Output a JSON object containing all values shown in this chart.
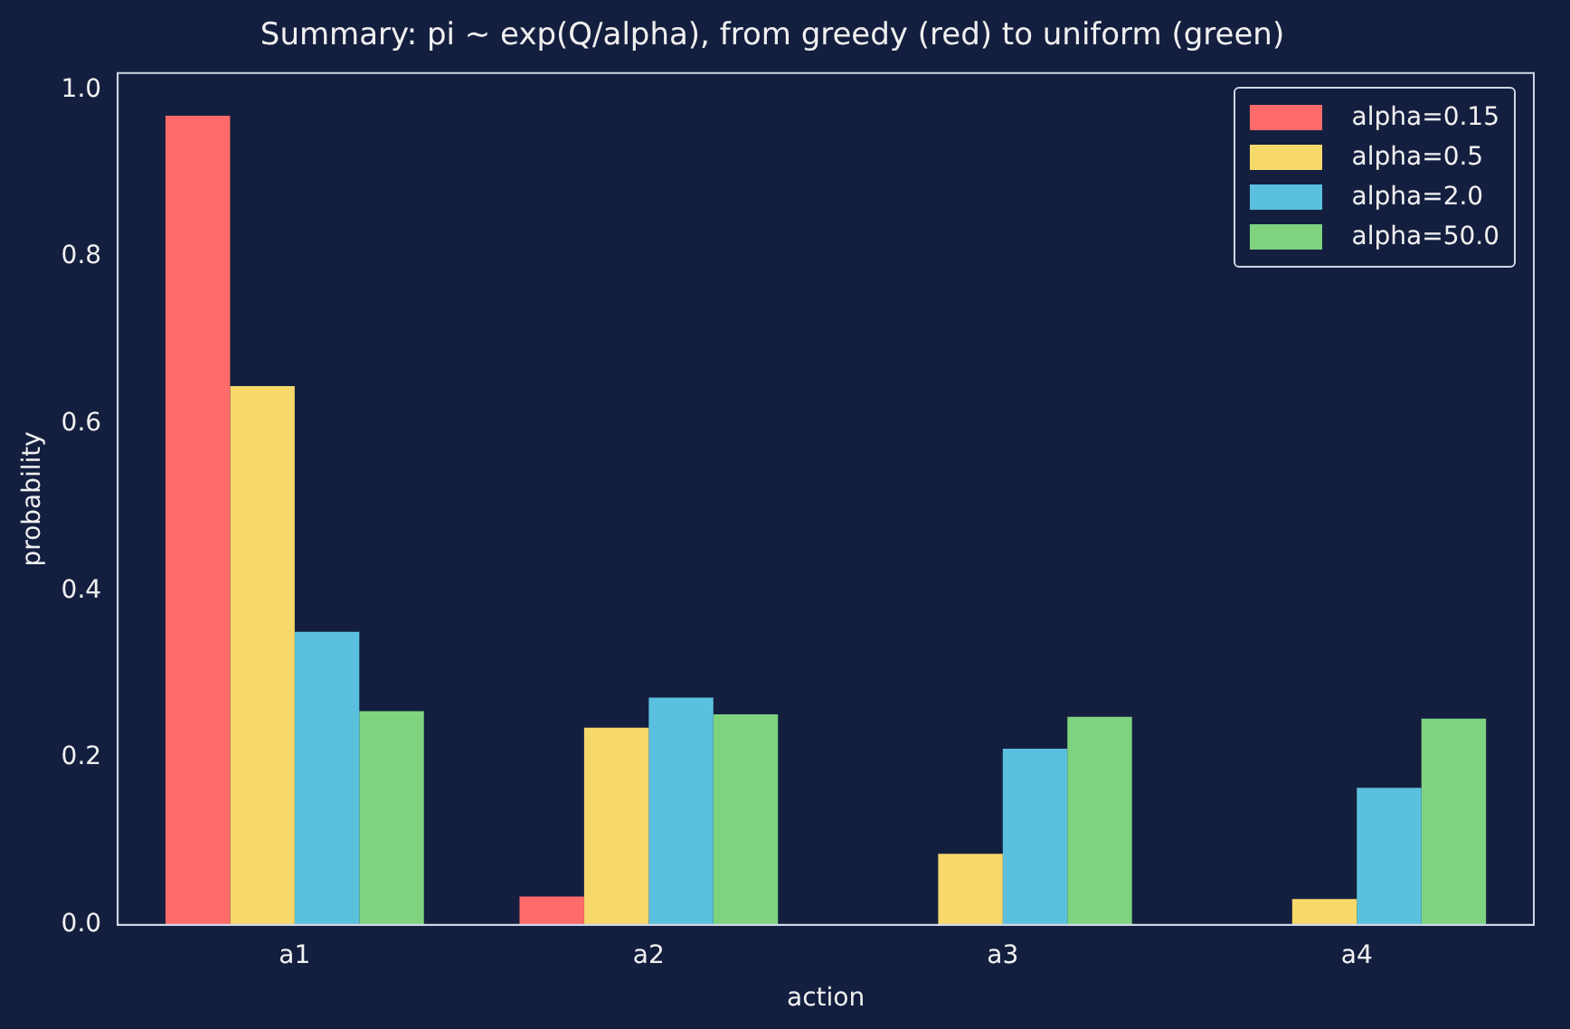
{
  "chart_data": {
    "type": "bar",
    "title": "Summary: pi ~ exp(Q/alpha), from greedy (red) to uniform (green)",
    "xlabel": "action",
    "ylabel": "probability",
    "categories": [
      "a1",
      "a2",
      "a3",
      "a4"
    ],
    "series": [
      {
        "name": "alpha=0.15",
        "color": "#ff6b6b",
        "values": [
          0.969,
          0.034,
          null,
          0
        ]
      },
      {
        "name": "alpha=0.5",
        "color": "#f6d86b",
        "values": [
          0.645,
          0.236,
          0.085,
          0.031
        ]
      },
      {
        "name": "alpha=2.0",
        "color": "#5bc0de",
        "values": [
          0.351,
          0.272,
          0.211,
          0.164
        ]
      },
      {
        "name": "alpha=50.0",
        "color": "#7fd37f",
        "values": [
          0.256,
          0.252,
          0.249,
          0.247
        ]
      }
    ],
    "ylim": [
      0,
      1.02
    ],
    "yticks": [
      {
        "value": 0,
        "label": "0.0"
      },
      {
        "value": 0.2,
        "label": "0.2"
      },
      {
        "value": 0.4,
        "label": "0.4"
      },
      {
        "value": 0.6,
        "label": "0.6"
      },
      {
        "value": 0.8,
        "label": "0.8"
      },
      {
        "value": 1,
        "label": "1.0"
      }
    ],
    "grid": false,
    "legend": "top right"
  }
}
